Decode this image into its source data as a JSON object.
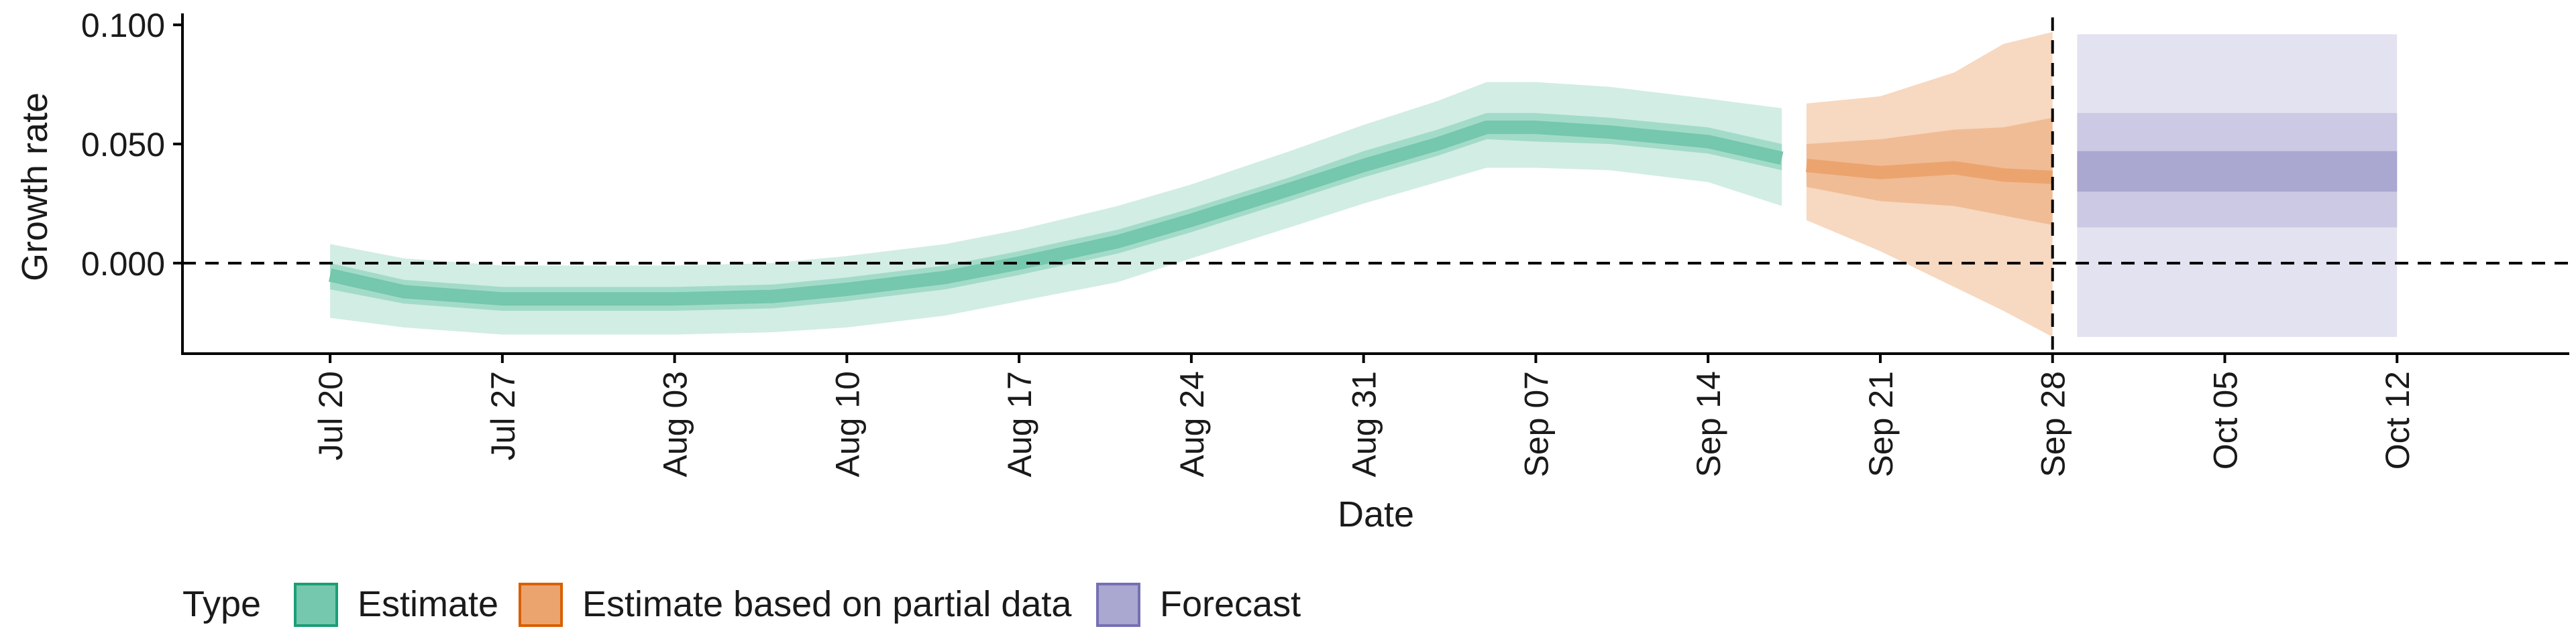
{
  "chart_data": {
    "type": "area",
    "xlabel": "Date",
    "ylabel": "Growth rate",
    "ylim": [
      -0.038,
      0.102
    ],
    "xlim": [
      "2020-07-14",
      "2020-10-19"
    ],
    "yticks": [
      0.0,
      0.05,
      0.1
    ],
    "ytick_labels": [
      "0.000",
      "0.050",
      "0.100"
    ],
    "xticks": [
      "2020-07-20",
      "2020-07-27",
      "2020-08-03",
      "2020-08-10",
      "2020-08-17",
      "2020-08-24",
      "2020-08-31",
      "2020-09-07",
      "2020-09-14",
      "2020-09-21",
      "2020-09-28",
      "2020-10-05",
      "2020-10-12"
    ],
    "xtick_labels": [
      "Jul 20",
      "Jul 27",
      "Aug 03",
      "Aug 10",
      "Aug 17",
      "Aug 24",
      "Aug 31",
      "Sep 07",
      "Sep 14",
      "Sep 21",
      "Sep 28",
      "Oct 05",
      "Oct 12"
    ],
    "hline": 0.0,
    "vline": "2020-09-28",
    "grid": false,
    "legend": {
      "title": "Type",
      "placement": "bottom",
      "entries": [
        {
          "label": "Estimate",
          "fill": "#75c7ad",
          "stroke": "#1b9e77"
        },
        {
          "label": "Estimate based on partial data",
          "fill": "#eca46f",
          "stroke": "#d95f02"
        },
        {
          "label": "Forecast",
          "fill": "#aaa7d0",
          "stroke": "#7570b3"
        }
      ]
    },
    "series": [
      {
        "name": "Estimate",
        "colors": {
          "outer": "#d2ede4",
          "mid": "#a3dbc9",
          "inner": "#75c7ad",
          "line": "#75c7ad"
        },
        "points": [
          {
            "x": "2020-07-20",
            "median": -0.005,
            "lo90": -0.023,
            "hi90": 0.008,
            "lo50": -0.011,
            "hi50": 0.0
          },
          {
            "x": "2020-07-23",
            "median": -0.012,
            "lo90": -0.027,
            "hi90": 0.002,
            "lo50": -0.017,
            "hi50": -0.007
          },
          {
            "x": "2020-07-27",
            "median": -0.015,
            "lo90": -0.03,
            "hi90": -0.001,
            "lo50": -0.02,
            "hi50": -0.01
          },
          {
            "x": "2020-07-31",
            "median": -0.015,
            "lo90": -0.03,
            "hi90": -0.001,
            "lo50": -0.02,
            "hi50": -0.01
          },
          {
            "x": "2020-08-03",
            "median": -0.015,
            "lo90": -0.03,
            "hi90": -0.001,
            "lo50": -0.02,
            "hi50": -0.01
          },
          {
            "x": "2020-08-07",
            "median": -0.014,
            "lo90": -0.029,
            "hi90": 0.0,
            "lo50": -0.019,
            "hi50": -0.009
          },
          {
            "x": "2020-08-10",
            "median": -0.011,
            "lo90": -0.027,
            "hi90": 0.003,
            "lo50": -0.016,
            "hi50": -0.006
          },
          {
            "x": "2020-08-14",
            "median": -0.006,
            "lo90": -0.022,
            "hi90": 0.008,
            "lo50": -0.011,
            "hi50": -0.001
          },
          {
            "x": "2020-08-17",
            "median": 0.0,
            "lo90": -0.016,
            "hi90": 0.014,
            "lo50": -0.005,
            "hi50": 0.005
          },
          {
            "x": "2020-08-21",
            "median": 0.009,
            "lo90": -0.008,
            "hi90": 0.024,
            "lo50": 0.004,
            "hi50": 0.014
          },
          {
            "x": "2020-08-24",
            "median": 0.018,
            "lo90": 0.002,
            "hi90": 0.033,
            "lo50": 0.013,
            "hi50": 0.023
          },
          {
            "x": "2020-08-28",
            "median": 0.031,
            "lo90": 0.015,
            "hi90": 0.047,
            "lo50": 0.026,
            "hi50": 0.036
          },
          {
            "x": "2020-08-31",
            "median": 0.041,
            "lo90": 0.025,
            "hi90": 0.058,
            "lo50": 0.036,
            "hi50": 0.047
          },
          {
            "x": "2020-09-03",
            "median": 0.05,
            "lo90": 0.034,
            "hi90": 0.068,
            "lo50": 0.045,
            "hi50": 0.056
          },
          {
            "x": "2020-09-05",
            "median": 0.057,
            "lo90": 0.04,
            "hi90": 0.076,
            "lo50": 0.052,
            "hi50": 0.063
          },
          {
            "x": "2020-09-07",
            "median": 0.057,
            "lo90": 0.04,
            "hi90": 0.076,
            "lo50": 0.051,
            "hi50": 0.063
          },
          {
            "x": "2020-09-10",
            "median": 0.055,
            "lo90": 0.039,
            "hi90": 0.074,
            "lo50": 0.05,
            "hi50": 0.061
          },
          {
            "x": "2020-09-14",
            "median": 0.051,
            "lo90": 0.034,
            "hi90": 0.069,
            "lo50": 0.046,
            "hi50": 0.057
          },
          {
            "x": "2020-09-17",
            "median": 0.044,
            "lo90": 0.024,
            "hi90": 0.065,
            "lo50": 0.039,
            "hi50": 0.05
          }
        ]
      },
      {
        "name": "Estimate based on partial data",
        "colors": {
          "outer": "#f7d8c0",
          "mid": "#f0bc96",
          "inner": "#eca46f",
          "line": "#eca46f"
        },
        "points": [
          {
            "x": "2020-09-18",
            "median": 0.041,
            "lo90": 0.018,
            "hi90": 0.067,
            "lo50": 0.032,
            "hi50": 0.05
          },
          {
            "x": "2020-09-21",
            "median": 0.038,
            "lo90": 0.005,
            "hi90": 0.07,
            "lo50": 0.026,
            "hi50": 0.052
          },
          {
            "x": "2020-09-24",
            "median": 0.04,
            "lo90": -0.01,
            "hi90": 0.08,
            "lo50": 0.024,
            "hi50": 0.056
          },
          {
            "x": "2020-09-26",
            "median": 0.037,
            "lo90": -0.02,
            "hi90": 0.092,
            "lo50": 0.02,
            "hi50": 0.057
          },
          {
            "x": "2020-09-28",
            "median": 0.036,
            "lo90": -0.031,
            "hi90": 0.097,
            "lo50": 0.016,
            "hi50": 0.061
          }
        ]
      },
      {
        "name": "Forecast",
        "colors": {
          "outer": "#e3e2f0",
          "mid": "#cbc9e3",
          "inner": "#aaa7d0",
          "line": "#aaa7d0"
        },
        "points": [
          {
            "x": "2020-09-29",
            "median": 0.038,
            "lo90": -0.031,
            "hi90": 0.096,
            "lo50": 0.015,
            "hi50": 0.063,
            "lo20": 0.03,
            "hi20": 0.047
          },
          {
            "x": "2020-10-12",
            "median": 0.038,
            "lo90": -0.031,
            "hi90": 0.096,
            "lo50": 0.015,
            "hi50": 0.063,
            "lo20": 0.03,
            "hi20": 0.047
          }
        ]
      }
    ]
  }
}
